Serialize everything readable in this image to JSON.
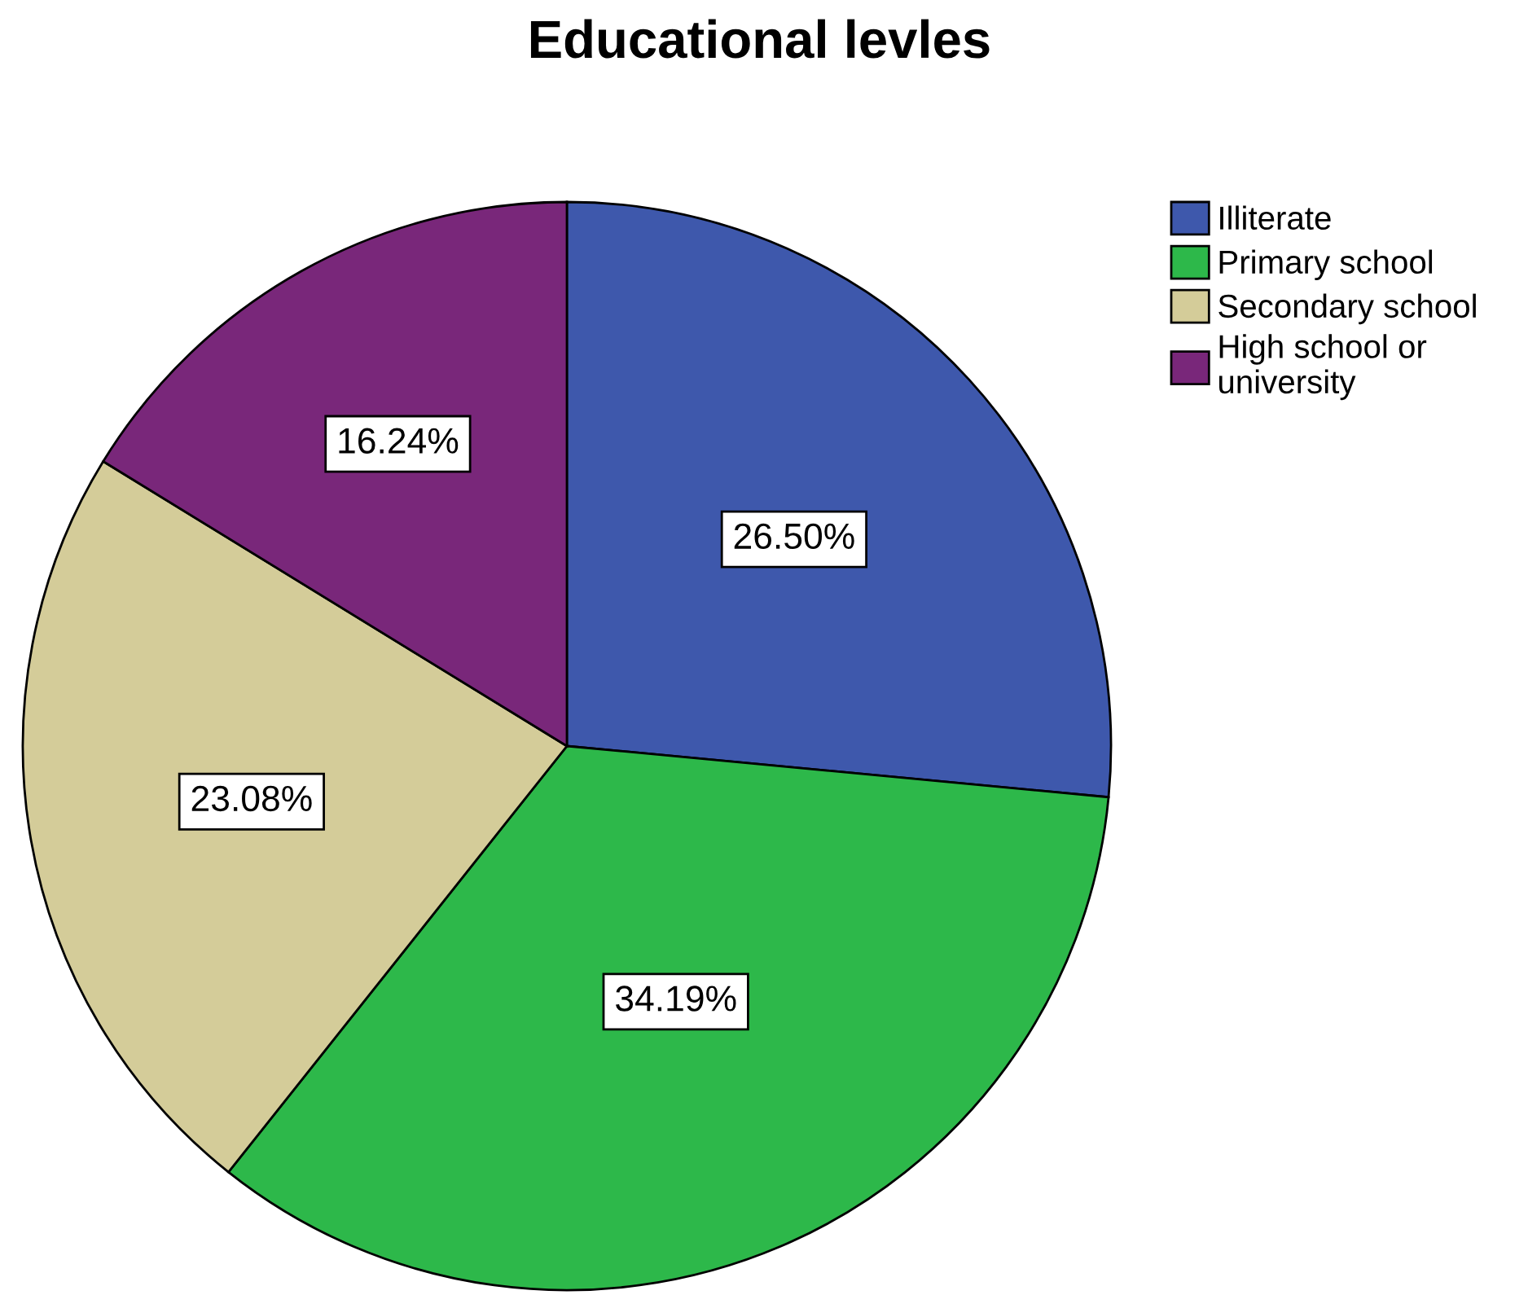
{
  "chart_data": {
    "type": "pie",
    "title": "Educational levles",
    "categories": [
      "Illiterate",
      "Primary school",
      "Secondary school",
      "High school or university"
    ],
    "values": [
      26.5,
      34.19,
      23.08,
      16.24
    ],
    "value_labels": [
      "26.50%",
      "34.19%",
      "23.08%",
      "16.24%"
    ],
    "colors": [
      "#3e58ac",
      "#2db84a",
      "#d4cc99",
      "#79277a"
    ],
    "legend": "top right"
  }
}
